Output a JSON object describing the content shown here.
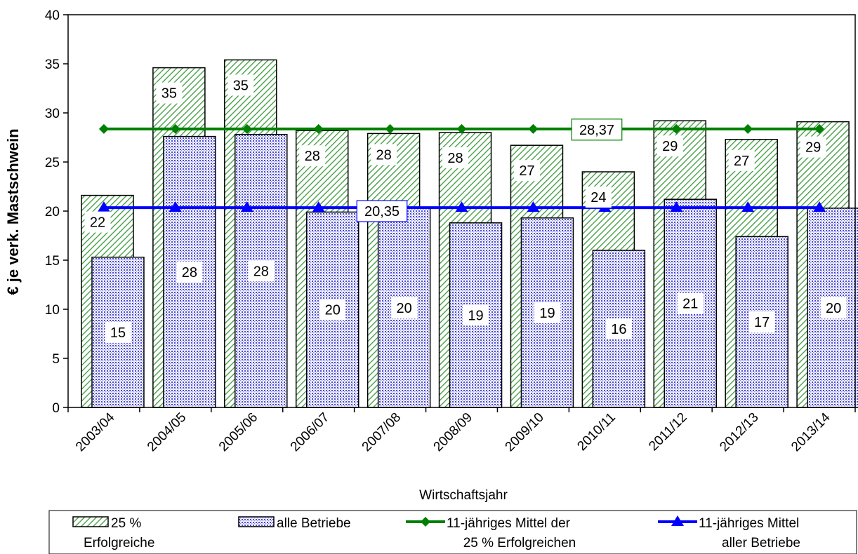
{
  "chart_data": {
    "type": "bar",
    "ylabel": "€ je verk. Mastschwein",
    "xlabel": "Wirtschaftsjahr",
    "ylim": [
      0,
      40
    ],
    "yticks": [
      0,
      5,
      10,
      15,
      20,
      25,
      30,
      35,
      40
    ],
    "categories": [
      "2003/04",
      "2004/05",
      "2005/06",
      "2006/07",
      "2007/08",
      "2008/09",
      "2009/10",
      "2010/11",
      "2011/12",
      "2012/13",
      "2013/14"
    ],
    "series": [
      {
        "name": "25 % Erfolgreiche",
        "legend_lines": [
          "25 %",
          "Erfolgreiche"
        ],
        "kind": "bar",
        "color": "#3c9a3c",
        "values": [
          21.6,
          34.6,
          35.4,
          28.2,
          27.9,
          28.0,
          26.7,
          24.0,
          29.2,
          27.3,
          29.1
        ],
        "labels": [
          "22",
          "35",
          "35",
          "28",
          "28",
          "28",
          "27",
          "24",
          "29",
          "27",
          "29"
        ]
      },
      {
        "name": "alle Betriebe",
        "legend_lines": [
          "alle Betriebe"
        ],
        "kind": "bar",
        "color": "#3333cc",
        "values": [
          15.3,
          27.6,
          27.8,
          19.9,
          20.3,
          18.8,
          19.3,
          16.0,
          21.2,
          17.4,
          20.3
        ],
        "labels": [
          "15",
          "28",
          "28",
          "20",
          "20",
          "19",
          "19",
          "16",
          "21",
          "17",
          "20"
        ]
      },
      {
        "name": "11-jähriges Mittel der 25 % Erfolgreichen",
        "legend_lines": [
          "11-jähriges Mittel der",
          "25 % Erfolgreichen"
        ],
        "kind": "line",
        "marker": "diamond",
        "color": "#008000",
        "value": 28.37,
        "label": "28,37"
      },
      {
        "name": "11-jähriges Mittel aller Betriebe",
        "legend_lines": [
          "11-jähriges Mittel",
          "aller Betriebe"
        ],
        "kind": "line",
        "marker": "triangle",
        "color": "#0000ff",
        "value": 20.35,
        "label": "20,35"
      }
    ]
  }
}
